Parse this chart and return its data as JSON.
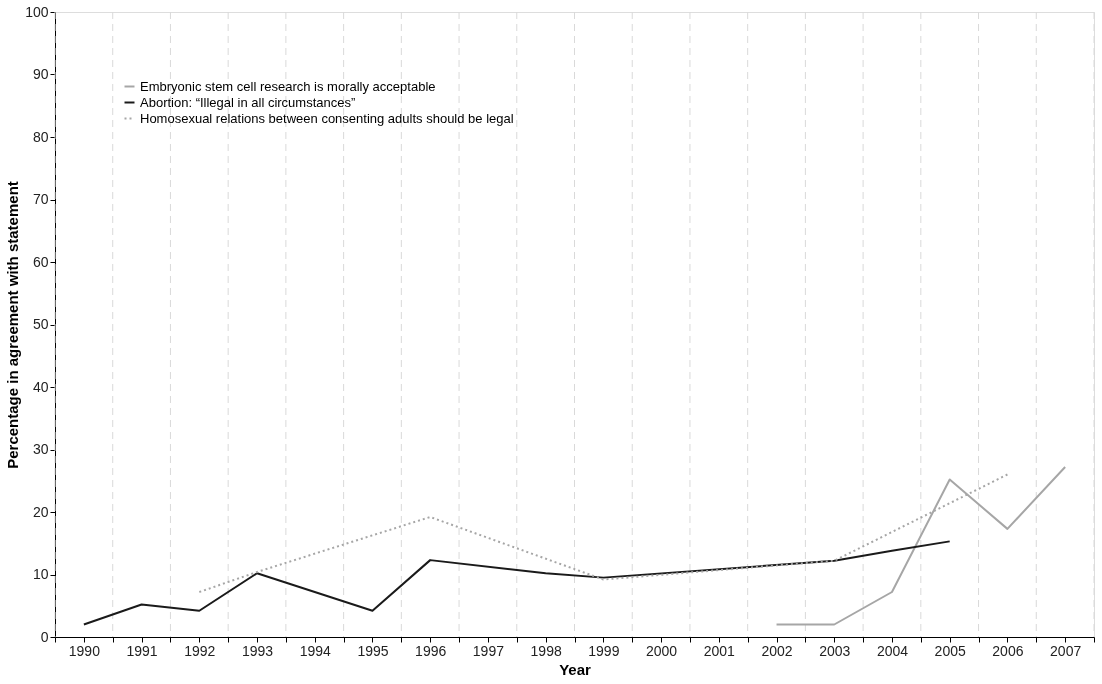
{
  "chart_data": {
    "type": "line",
    "xlabel": "Year",
    "ylabel": "Percentage in agreement with statement",
    "series": [
      {
        "name": "Embryonic stem cell research is morally acceptable",
        "color": "#a6a6a6",
        "line_style": "solid",
        "x": [
          2002,
          2003,
          2004,
          2005,
          2006,
          2007
        ],
        "values": [
          2,
          2,
          7.2,
          25.2,
          17.3,
          27.2
        ]
      },
      {
        "name": "Abortion: “Illegal in all circumstances”",
        "color": "#1a1a1a",
        "line_style": "solid",
        "x": [
          1990,
          1991,
          1992,
          1993,
          1995,
          1996,
          1998,
          1999,
          2003,
          2004,
          2005
        ],
        "values": [
          2,
          5.2,
          4.2,
          10.2,
          4.2,
          12.3,
          10.2,
          9.5,
          12.2,
          13.8,
          15.3
        ]
      },
      {
        "name": "Homosexual relations between consenting adults should be legal",
        "color": "#a6a6a6",
        "line_style": "dotted",
        "x": [
          1992,
          1993,
          1996,
          1999,
          2003,
          2006
        ],
        "values": [
          7.2,
          10.4,
          19.2,
          9.2,
          12.2,
          26
        ]
      }
    ],
    "xlim": [
      1989.5,
      2007.5
    ],
    "xticks": [
      {
        "value": 1989.5,
        "label": null
      },
      1990,
      {
        "value": 1990.5,
        "label": null
      },
      1991,
      {
        "value": 1991.5,
        "label": null
      },
      1992,
      {
        "value": 1992.5,
        "label": null
      },
      1993,
      {
        "value": 1993.5,
        "label": null
      },
      1994,
      {
        "value": 1994.5,
        "label": null
      },
      1995,
      {
        "value": 1995.5,
        "label": null
      },
      1996,
      {
        "value": 1996.5,
        "label": null
      },
      1997,
      {
        "value": 1997.5,
        "label": null
      },
      1998,
      {
        "value": 1998.5,
        "label": null
      },
      1999,
      {
        "value": 1999.5,
        "label": null
      },
      2000,
      {
        "value": 2000.5,
        "label": null
      },
      2001,
      {
        "value": 2001.5,
        "label": null
      },
      2002,
      {
        "value": 2002.5,
        "label": null
      },
      2003,
      {
        "value": 2003.5,
        "label": null
      },
      2004,
      {
        "value": 2004.5,
        "label": null
      },
      2005,
      {
        "value": 2005.5,
        "label": null
      },
      2006,
      {
        "value": 2006.5,
        "label": null
      },
      2007,
      {
        "value": 2007.5,
        "label": null
      }
    ],
    "ylim": [
      0,
      100
    ],
    "yticks": [
      0,
      10,
      20,
      30,
      40,
      50,
      60,
      70,
      80,
      90,
      100
    ],
    "grid": "x",
    "legend": "top left",
    "marker": "none"
  }
}
